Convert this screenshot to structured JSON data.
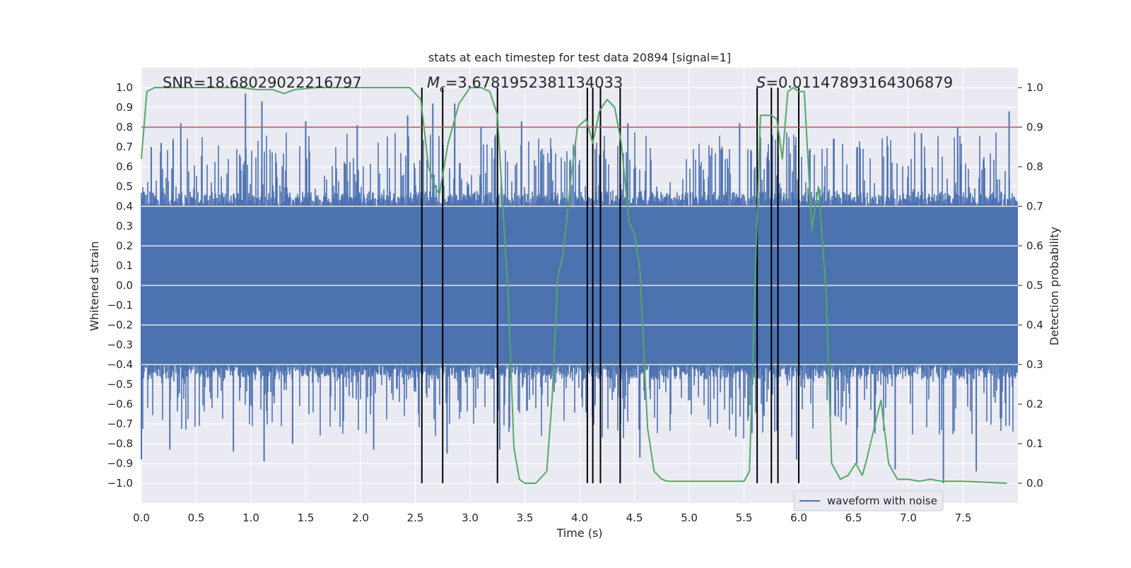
{
  "chart_data": {
    "type": "line",
    "title": "stats at each timestep for test data 20894 [signal=1]",
    "xlabel": "Time (s)",
    "ylabel": "Whitened strain",
    "y2label": "Detection probability",
    "xlim": [
      0.0,
      8.0
    ],
    "ylim": [
      -1.1,
      1.1
    ],
    "y2lim": [
      -0.05,
      1.05
    ],
    "x_ticks": [
      "0.0",
      "0.5",
      "1.0",
      "1.5",
      "2.0",
      "2.5",
      "3.0",
      "3.5",
      "4.0",
      "4.5",
      "5.0",
      "5.5",
      "6.0",
      "6.5",
      "7.0",
      "7.5"
    ],
    "y_ticks": [
      "1.0",
      "0.9",
      "0.8",
      "0.7",
      "0.6",
      "0.5",
      "0.4",
      "0.3",
      "0.2",
      "0.1",
      "0.0",
      "−0.1",
      "−0.2",
      "−0.3",
      "−0.4",
      "−0.5",
      "−0.6",
      "−0.7",
      "−0.8",
      "−0.9",
      "−1.0"
    ],
    "y2_ticks": [
      "1.0",
      "0.9",
      "0.8",
      "0.7",
      "0.6",
      "0.5",
      "0.4",
      "0.3",
      "0.2",
      "0.1",
      "0.0"
    ],
    "grid": true,
    "legend_position": "lower-right",
    "annotations": {
      "snr": "SNR=18.68029022216797",
      "mc_symbol": "M",
      "mc_sub": "c",
      "mc_value": "=3.6781952381134033",
      "s_symbol": "S",
      "s_value": "=0.01147893164306879"
    },
    "threshold": 0.9,
    "markers": [
      2.56,
      2.75,
      3.25,
      4.07,
      4.12,
      4.19,
      4.37,
      5.62,
      5.75,
      5.81,
      6.0
    ],
    "series": [
      {
        "name": "waveform with noise",
        "color": "#4c72b0",
        "axis": "left",
        "kind": "noise-envelope",
        "envelope_core": 0.4,
        "peaks": [
          {
            "t": 0.09,
            "v": 0.7
          },
          {
            "t": 0.18,
            "v": 0.72
          },
          {
            "t": 0.29,
            "v": 0.73
          },
          {
            "t": 0.36,
            "v": 0.82
          },
          {
            "t": 0.95,
            "v": 0.97
          },
          {
            "t": 1.1,
            "v": 0.93
          },
          {
            "t": 1.5,
            "v": 0.83
          },
          {
            "t": 1.97,
            "v": 0.81
          },
          {
            "t": 2.43,
            "v": 0.86
          },
          {
            "t": 2.66,
            "v": 0.92
          },
          {
            "t": 2.86,
            "v": 0.92
          },
          {
            "t": 3.1,
            "v": 0.8
          },
          {
            "t": 3.47,
            "v": 0.83
          },
          {
            "t": 4.44,
            "v": 0.82
          },
          {
            "t": 5.3,
            "v": 0.7
          },
          {
            "t": 5.46,
            "v": 0.82
          },
          {
            "t": 5.65,
            "v": 0.75
          },
          {
            "t": 6.32,
            "v": 0.7
          },
          {
            "t": 7.12,
            "v": 0.77
          },
          {
            "t": 7.45,
            "v": 0.8
          },
          {
            "t": 7.92,
            "v": 0.88
          },
          {
            "t": 0.26,
            "v": -0.83
          },
          {
            "t": 0.84,
            "v": -0.84
          },
          {
            "t": 1.12,
            "v": -0.89
          },
          {
            "t": 1.38,
            "v": -0.8
          },
          {
            "t": 2.12,
            "v": -0.83
          },
          {
            "t": 2.79,
            "v": -0.85
          },
          {
            "t": 3.27,
            "v": -0.83
          },
          {
            "t": 4.55,
            "v": -0.87
          },
          {
            "t": 6.53,
            "v": -0.9
          },
          {
            "t": 6.88,
            "v": -0.93
          },
          {
            "t": 7.32,
            "v": -1.0
          },
          {
            "t": 7.62,
            "v": -0.94
          },
          {
            "t": 5.98,
            "v": -0.88
          },
          {
            "t": 0.0,
            "v": -0.88
          }
        ]
      },
      {
        "name": "detection probability",
        "color": "#55a868",
        "axis": "right",
        "x": [
          0.0,
          0.05,
          0.12,
          0.3,
          0.6,
          0.9,
          1.05,
          1.2,
          1.3,
          1.4,
          1.6,
          2.0,
          2.45,
          2.55,
          2.62,
          2.68,
          2.72,
          2.8,
          2.9,
          3.0,
          3.1,
          3.18,
          3.25,
          3.35,
          3.4,
          3.45,
          3.5,
          3.6,
          3.7,
          3.75,
          3.8,
          3.85,
          3.92,
          3.98,
          4.06,
          4.12,
          4.18,
          4.25,
          4.32,
          4.38,
          4.45,
          4.5,
          4.55,
          4.62,
          4.68,
          4.75,
          4.8,
          4.9,
          5.0,
          5.2,
          5.35,
          5.45,
          5.5,
          5.55,
          5.6,
          5.65,
          5.7,
          5.75,
          5.8,
          5.85,
          5.9,
          5.95,
          6.0,
          6.05,
          6.12,
          6.18,
          6.25,
          6.3,
          6.38,
          6.45,
          6.52,
          6.58,
          6.62,
          6.68,
          6.75,
          6.82,
          6.9,
          7.0,
          7.1,
          7.2,
          7.3,
          7.5,
          7.9
        ],
        "y": [
          0.82,
          0.99,
          1.0,
          1.0,
          1.0,
          1.0,
          0.995,
          0.995,
          0.985,
          0.995,
          1.0,
          1.0,
          1.0,
          0.97,
          0.8,
          0.75,
          0.73,
          0.86,
          0.96,
          1.0,
          1.0,
          0.99,
          0.93,
          0.46,
          0.09,
          0.01,
          0.0,
          0.0,
          0.03,
          0.22,
          0.52,
          0.58,
          0.77,
          0.9,
          0.92,
          0.86,
          0.94,
          0.97,
          0.95,
          0.86,
          0.66,
          0.63,
          0.54,
          0.14,
          0.03,
          0.01,
          0.005,
          0.005,
          0.005,
          0.005,
          0.005,
          0.005,
          0.005,
          0.03,
          0.5,
          0.93,
          0.93,
          0.93,
          0.92,
          0.82,
          0.99,
          1.0,
          0.99,
          0.99,
          0.64,
          0.75,
          0.48,
          0.05,
          0.01,
          0.02,
          0.05,
          0.02,
          0.06,
          0.13,
          0.21,
          0.05,
          0.01,
          0.01,
          0.005,
          0.01,
          0.005,
          0.005,
          0.0
        ]
      },
      {
        "name": "threshold",
        "color": "#c44e52",
        "axis": "right",
        "y": [
          0.9
        ]
      }
    ]
  }
}
